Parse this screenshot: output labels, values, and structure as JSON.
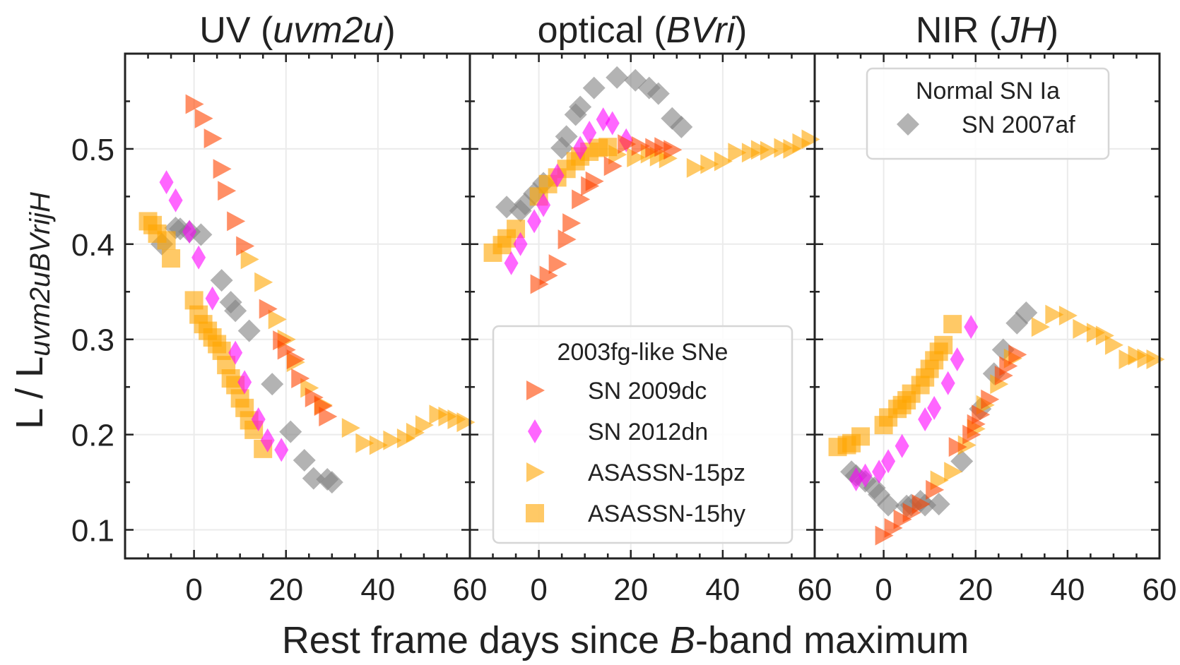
{
  "chart_data": {
    "type": "scatter",
    "ylabel_main": "L / L",
    "ylabel_sub": "uvm2uBVrijH",
    "xlabel_parts": [
      "Rest frame days since ",
      "B",
      "-band maximum"
    ],
    "xlim": [
      -15,
      60
    ],
    "ylim": [
      0.07,
      0.6
    ],
    "xticks": [
      0,
      20,
      40,
      60
    ],
    "xminor_step": 5,
    "yticks": [
      0.1,
      0.2,
      0.3,
      0.4,
      0.5
    ],
    "ytick_labels": [
      "0.1",
      "0.2",
      "0.3",
      "0.4",
      "0.5"
    ],
    "yminor_step": 0.05,
    "grid": true,
    "panels": [
      {
        "name": "UV",
        "title_plain": "UV (",
        "title_italic": "uvm2u",
        "title_end": ")"
      },
      {
        "name": "optical",
        "title_plain": "optical (",
        "title_italic": "BVri",
        "title_end": ")"
      },
      {
        "name": "NIR",
        "title_plain": "NIR (",
        "title_italic": "JH",
        "title_end": ")"
      }
    ],
    "series": [
      {
        "name": "SN 2007af",
        "group": "Normal SN Ia",
        "marker": "diamond",
        "color": "#808080",
        "panels": [
          [
            [
              -7,
              0.4
            ],
            [
              -4,
              0.417
            ],
            [
              -3,
              0.416
            ],
            [
              -1,
              0.413
            ],
            [
              1.5,
              0.41
            ],
            [
              6,
              0.362
            ],
            [
              8,
              0.339
            ],
            [
              9,
              0.33
            ],
            [
              12,
              0.309
            ],
            [
              17,
              0.253
            ],
            [
              21,
              0.203
            ],
            [
              24,
              0.173
            ],
            [
              26,
              0.154
            ],
            [
              29,
              0.153
            ],
            [
              30,
              0.15
            ]
          ],
          [
            [
              -7,
              0.439
            ],
            [
              -4,
              0.435
            ],
            [
              -3,
              0.442
            ],
            [
              -1,
              0.453
            ],
            [
              1,
              0.464
            ],
            [
              5,
              0.501
            ],
            [
              6,
              0.513
            ],
            [
              8,
              0.536
            ],
            [
              9,
              0.544
            ],
            [
              12,
              0.564
            ],
            [
              17,
              0.575
            ],
            [
              21,
              0.572
            ],
            [
              24,
              0.564
            ],
            [
              26,
              0.558
            ],
            [
              29,
              0.532
            ],
            [
              31,
              0.523
            ]
          ],
          [
            [
              -7,
              0.161
            ],
            [
              -6,
              0.157
            ],
            [
              -4,
              0.151
            ],
            [
              -2,
              0.144
            ],
            [
              -1,
              0.137
            ],
            [
              1,
              0.126
            ],
            [
              5,
              0.125
            ],
            [
              6,
              0.126
            ],
            [
              8,
              0.13
            ],
            [
              9,
              0.126
            ],
            [
              12,
              0.127
            ],
            [
              17,
              0.172
            ],
            [
              21,
              0.227
            ],
            [
              24,
              0.264
            ],
            [
              26,
              0.289
            ],
            [
              29,
              0.317
            ],
            [
              31,
              0.328
            ]
          ]
        ]
      },
      {
        "name": "ASASSN-15hy",
        "group": "2003fg-like SNe",
        "marker": "square",
        "color": "#ffa500",
        "panels": [
          [
            [
              -10,
              0.424
            ],
            [
              -9,
              0.42
            ],
            [
              -8,
              0.411
            ],
            [
              -6,
              0.404
            ],
            [
              -5,
              0.385
            ],
            [
              0,
              0.341
            ],
            [
              1,
              0.326
            ],
            [
              2,
              0.316
            ],
            [
              3,
              0.309
            ],
            [
              4,
              0.302
            ],
            [
              5,
              0.295
            ],
            [
              6,
              0.288
            ],
            [
              7,
              0.273
            ],
            [
              8,
              0.259
            ],
            [
              9,
              0.252
            ],
            [
              10,
              0.238
            ],
            [
              11,
              0.228
            ],
            [
              12,
              0.215
            ],
            [
              13,
              0.205
            ],
            [
              15,
              0.185
            ]
          ],
          [
            [
              -10,
              0.391
            ],
            [
              -8,
              0.399
            ],
            [
              -7,
              0.406
            ],
            [
              -5,
              0.416
            ],
            [
              0,
              0.45
            ],
            [
              2,
              0.463
            ],
            [
              4,
              0.47
            ],
            [
              6,
              0.479
            ],
            [
              8,
              0.487
            ],
            [
              9,
              0.492
            ],
            [
              11,
              0.497
            ],
            [
              13,
              0.501
            ],
            [
              15,
              0.502
            ]
          ],
          [
            [
              -10,
              0.187
            ],
            [
              -8,
              0.189
            ],
            [
              -7,
              0.191
            ],
            [
              -5,
              0.198
            ],
            [
              0,
              0.21
            ],
            [
              1,
              0.218
            ],
            [
              3,
              0.227
            ],
            [
              4,
              0.231
            ],
            [
              5,
              0.236
            ],
            [
              6,
              0.243
            ],
            [
              8,
              0.252
            ],
            [
              9,
              0.26
            ],
            [
              10,
              0.269
            ],
            [
              11,
              0.278
            ],
            [
              12,
              0.287
            ],
            [
              13,
              0.294
            ],
            [
              15,
              0.316
            ]
          ]
        ]
      },
      {
        "name": "SN 2012dn",
        "group": "2003fg-like SNe",
        "marker": "thin_diamond",
        "color": "#ff00ff",
        "panels": [
          [
            [
              -6,
              0.465
            ],
            [
              -4,
              0.446
            ],
            [
              -1,
              0.413
            ],
            [
              1,
              0.386
            ],
            [
              4,
              0.343
            ],
            [
              9,
              0.286
            ],
            [
              11,
              0.255
            ],
            [
              14,
              0.216
            ],
            [
              16,
              0.194
            ],
            [
              19,
              0.184
            ]
          ],
          [
            [
              -6,
              0.38
            ],
            [
              -4,
              0.4
            ],
            [
              -1,
              0.424
            ],
            [
              1,
              0.441
            ],
            [
              4,
              0.472
            ],
            [
              9,
              0.501
            ],
            [
              11,
              0.517
            ],
            [
              14,
              0.531
            ],
            [
              16,
              0.527
            ],
            [
              19,
              0.509
            ]
          ],
          [
            [
              -6,
              0.153
            ],
            [
              -4,
              0.157
            ],
            [
              -1,
              0.161
            ],
            [
              1,
              0.172
            ],
            [
              4,
              0.188
            ],
            [
              9,
              0.216
            ],
            [
              11,
              0.228
            ],
            [
              14,
              0.254
            ],
            [
              16,
              0.279
            ],
            [
              19,
              0.313
            ]
          ]
        ]
      },
      {
        "name": "ASASSN-15pz",
        "group": "2003fg-like SNe",
        "marker": "triangle_right",
        "color": "#ffa500",
        "panels": [
          [
            [
              12,
              0.384
            ],
            [
              15,
              0.36
            ],
            [
              18,
              0.321
            ],
            [
              20,
              0.3
            ],
            [
              22,
              0.276
            ],
            [
              25,
              0.249
            ],
            [
              28,
              0.231
            ],
            [
              34,
              0.207
            ],
            [
              37,
              0.191
            ],
            [
              40,
              0.189
            ],
            [
              43,
              0.194
            ],
            [
              46,
              0.196
            ],
            [
              48,
              0.202
            ],
            [
              50,
              0.21
            ],
            [
              53,
              0.221
            ],
            [
              55,
              0.219
            ],
            [
              57,
              0.216
            ],
            [
              59,
              0.213
            ]
          ],
          [
            [
              17,
              0.494
            ],
            [
              21,
              0.491
            ],
            [
              24,
              0.495
            ],
            [
              26,
              0.492
            ],
            [
              28,
              0.49
            ],
            [
              34,
              0.48
            ],
            [
              37,
              0.484
            ],
            [
              40,
              0.487
            ],
            [
              43,
              0.496
            ],
            [
              46,
              0.496
            ],
            [
              48,
              0.499
            ],
            [
              50,
              0.498
            ],
            [
              53,
              0.501
            ],
            [
              55,
              0.5
            ],
            [
              57,
              0.506
            ],
            [
              59,
              0.51
            ]
          ],
          [
            [
              12,
              0.152
            ],
            [
              15,
              0.161
            ],
            [
              18,
              0.189
            ],
            [
              20,
              0.206
            ],
            [
              22,
              0.231
            ],
            [
              25,
              0.253
            ],
            [
              28,
              0.28
            ],
            [
              34,
              0.313
            ],
            [
              37,
              0.326
            ],
            [
              40,
              0.325
            ],
            [
              43,
              0.311
            ],
            [
              46,
              0.307
            ],
            [
              48,
              0.304
            ],
            [
              50,
              0.294
            ],
            [
              53,
              0.279
            ],
            [
              55,
              0.283
            ],
            [
              57,
              0.28
            ],
            [
              59,
              0.279
            ]
          ]
        ]
      },
      {
        "name": "SN 2009dc",
        "group": "2003fg-like SNe",
        "marker": "triangle_right",
        "color": "#ff4500",
        "panels": [
          [
            [
              0,
              0.547
            ],
            [
              2,
              0.532
            ],
            [
              4,
              0.511
            ],
            [
              6,
              0.479
            ],
            [
              7,
              0.456
            ],
            [
              9,
              0.424
            ],
            [
              11,
              0.398
            ],
            [
              16,
              0.332
            ],
            [
              19,
              0.299
            ],
            [
              20,
              0.289
            ],
            [
              22,
              0.279
            ],
            [
              23,
              0.259
            ],
            [
              26,
              0.239
            ],
            [
              28,
              0.23
            ],
            [
              29,
              0.219
            ]
          ],
          [
            [
              0,
              0.358
            ],
            [
              2,
              0.367
            ],
            [
              4,
              0.379
            ],
            [
              6,
              0.405
            ],
            [
              7,
              0.422
            ],
            [
              9,
              0.447
            ],
            [
              11,
              0.461
            ],
            [
              12,
              0.466
            ],
            [
              16,
              0.482
            ],
            [
              19,
              0.505
            ],
            [
              22,
              0.503
            ],
            [
              25,
              0.501
            ],
            [
              27,
              0.502
            ],
            [
              29,
              0.499
            ]
          ],
          [
            [
              0,
              0.094
            ],
            [
              2,
              0.102
            ],
            [
              4,
              0.111
            ],
            [
              6,
              0.118
            ],
            [
              8,
              0.127
            ],
            [
              11,
              0.142
            ],
            [
              16,
              0.187
            ],
            [
              19,
              0.2
            ],
            [
              20,
              0.211
            ],
            [
              21,
              0.221
            ],
            [
              23,
              0.237
            ],
            [
              26,
              0.262
            ],
            [
              27,
              0.272
            ],
            [
              29,
              0.284
            ]
          ]
        ]
      }
    ],
    "legends": [
      {
        "title": "2003fg-like SNe",
        "panel": 2,
        "placement": "lower-center",
        "entries": [
          {
            "label": "SN 2009dc",
            "marker": "triangle_right",
            "color": "#ff4500"
          },
          {
            "label": "SN 2012dn",
            "marker": "thin_diamond",
            "color": "#ff00ff"
          },
          {
            "label": "ASASSN-15pz",
            "marker": "triangle_right",
            "color": "#ffa500"
          },
          {
            "label": "ASASSN-15hy",
            "marker": "square",
            "color": "#ffa500"
          }
        ]
      },
      {
        "title": "Normal SN Ia",
        "panel": 3,
        "placement": "upper-right",
        "entries": [
          {
            "label": "SN 2007af",
            "marker": "diamond",
            "color": "#808080"
          }
        ]
      }
    ],
    "marker_opacity": 0.6
  }
}
